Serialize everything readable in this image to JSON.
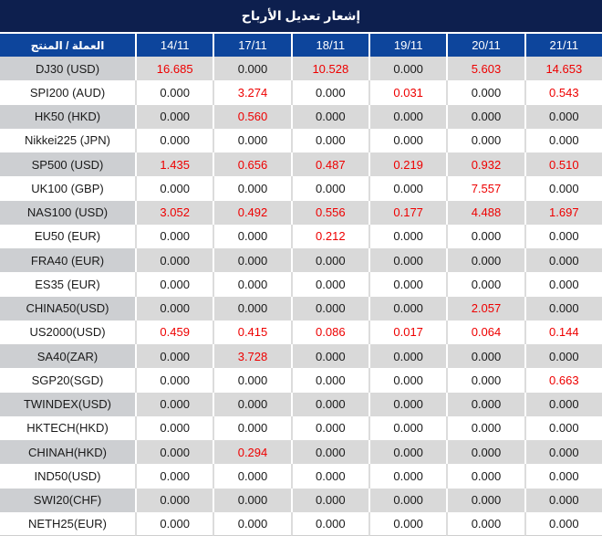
{
  "title": "إشعار تعديل الأرباح",
  "colors": {
    "title_bg": "#0d1f4e",
    "header_bg": "#0d459c",
    "row_alt_bg": "#d9d9d9",
    "product_alt_bg": "#cdcfd2",
    "value_red": "#ee0000",
    "value_black": "#1a1a1a"
  },
  "table": {
    "product_header": "العملة / المنتج",
    "date_headers": [
      "14/11",
      "17/11",
      "18/11",
      "19/11",
      "20/11",
      "21/11"
    ],
    "rows": [
      {
        "product": "DJ30 (USD)",
        "values": [
          "16.685",
          "0.000",
          "10.528",
          "0.000",
          "5.603",
          "14.653"
        ]
      },
      {
        "product": "SPI200 (AUD)",
        "values": [
          "0.000",
          "3.274",
          "0.000",
          "0.031",
          "0.000",
          "0.543"
        ]
      },
      {
        "product": "HK50 (HKD)",
        "values": [
          "0.000",
          "0.560",
          "0.000",
          "0.000",
          "0.000",
          "0.000"
        ]
      },
      {
        "product": "Nikkei225 (JPN)",
        "values": [
          "0.000",
          "0.000",
          "0.000",
          "0.000",
          "0.000",
          "0.000"
        ]
      },
      {
        "product": "SP500 (USD)",
        "values": [
          "1.435",
          "0.656",
          "0.487",
          "0.219",
          "0.932",
          "0.510"
        ]
      },
      {
        "product": "UK100 (GBP)",
        "values": [
          "0.000",
          "0.000",
          "0.000",
          "0.000",
          "7.557",
          "0.000"
        ]
      },
      {
        "product": "NAS100 (USD)",
        "values": [
          "3.052",
          "0.492",
          "0.556",
          "0.177",
          "4.488",
          "1.697"
        ]
      },
      {
        "product": "EU50 (EUR)",
        "values": [
          "0.000",
          "0.000",
          "0.212",
          "0.000",
          "0.000",
          "0.000"
        ]
      },
      {
        "product": "FRA40 (EUR)",
        "values": [
          "0.000",
          "0.000",
          "0.000",
          "0.000",
          "0.000",
          "0.000"
        ]
      },
      {
        "product": "ES35 (EUR)",
        "values": [
          "0.000",
          "0.000",
          "0.000",
          "0.000",
          "0.000",
          "0.000"
        ]
      },
      {
        "product": "CHINA50(USD)",
        "values": [
          "0.000",
          "0.000",
          "0.000",
          "0.000",
          "2.057",
          "0.000"
        ]
      },
      {
        "product": "US2000(USD)",
        "values": [
          "0.459",
          "0.415",
          "0.086",
          "0.017",
          "0.064",
          "0.144"
        ]
      },
      {
        "product": "SA40(ZAR)",
        "values": [
          "0.000",
          "3.728",
          "0.000",
          "0.000",
          "0.000",
          "0.000"
        ]
      },
      {
        "product": "SGP20(SGD)",
        "values": [
          "0.000",
          "0.000",
          "0.000",
          "0.000",
          "0.000",
          "0.663"
        ]
      },
      {
        "product": "TWINDEX(USD)",
        "values": [
          "0.000",
          "0.000",
          "0.000",
          "0.000",
          "0.000",
          "0.000"
        ]
      },
      {
        "product": "HKTECH(HKD)",
        "values": [
          "0.000",
          "0.000",
          "0.000",
          "0.000",
          "0.000",
          "0.000"
        ]
      },
      {
        "product": "CHINAH(HKD)",
        "values": [
          "0.000",
          "0.294",
          "0.000",
          "0.000",
          "0.000",
          "0.000"
        ]
      },
      {
        "product": "IND50(USD)",
        "values": [
          "0.000",
          "0.000",
          "0.000",
          "0.000",
          "0.000",
          "0.000"
        ]
      },
      {
        "product": "SWI20(CHF)",
        "values": [
          "0.000",
          "0.000",
          "0.000",
          "0.000",
          "0.000",
          "0.000"
        ]
      },
      {
        "product": "NETH25(EUR)",
        "values": [
          "0.000",
          "0.000",
          "0.000",
          "0.000",
          "0.000",
          "0.000"
        ]
      }
    ]
  }
}
